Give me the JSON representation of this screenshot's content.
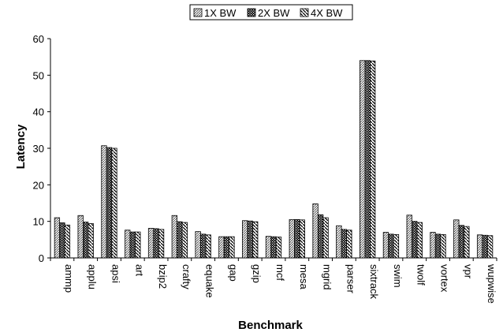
{
  "chart_data": {
    "type": "bar",
    "xlabel": "Benchmark",
    "ylabel": "Latency",
    "ylim": [
      0,
      60
    ],
    "yticks": [
      0,
      10,
      20,
      30,
      40,
      50,
      60
    ],
    "grid": false,
    "legend_position": "top-center",
    "categories": [
      "ammp",
      "applu",
      "apsi",
      "art",
      "bzip2",
      "crafty",
      "equake",
      "gap",
      "gzip",
      "mcf",
      "mesa",
      "mgrid",
      "parser",
      "sixtrack",
      "swim",
      "twolf",
      "vortex",
      "vpr",
      "wupwise"
    ],
    "series": [
      {
        "name": "1X BW",
        "pattern": "diagonal-hatch",
        "values": [
          11.0,
          11.6,
          30.7,
          7.6,
          8.1,
          11.6,
          7.2,
          5.8,
          10.2,
          5.9,
          10.5,
          14.8,
          8.8,
          54.0,
          7.0,
          11.7,
          7.0,
          10.4,
          6.3
        ]
      },
      {
        "name": "2X BW",
        "pattern": "checker-dark",
        "values": [
          9.6,
          9.8,
          30.2,
          7.1,
          8.0,
          9.9,
          6.5,
          5.8,
          10.1,
          5.8,
          10.5,
          11.8,
          7.8,
          54.0,
          6.5,
          10.0,
          6.5,
          8.9,
          6.2
        ]
      },
      {
        "name": "4X BW",
        "pattern": "backslash-hatch",
        "values": [
          9.0,
          9.4,
          30.0,
          7.1,
          7.8,
          9.7,
          6.3,
          5.8,
          9.9,
          5.7,
          10.4,
          11.0,
          7.6,
          53.9,
          6.4,
          9.7,
          6.4,
          8.6,
          6.1
        ]
      }
    ]
  }
}
